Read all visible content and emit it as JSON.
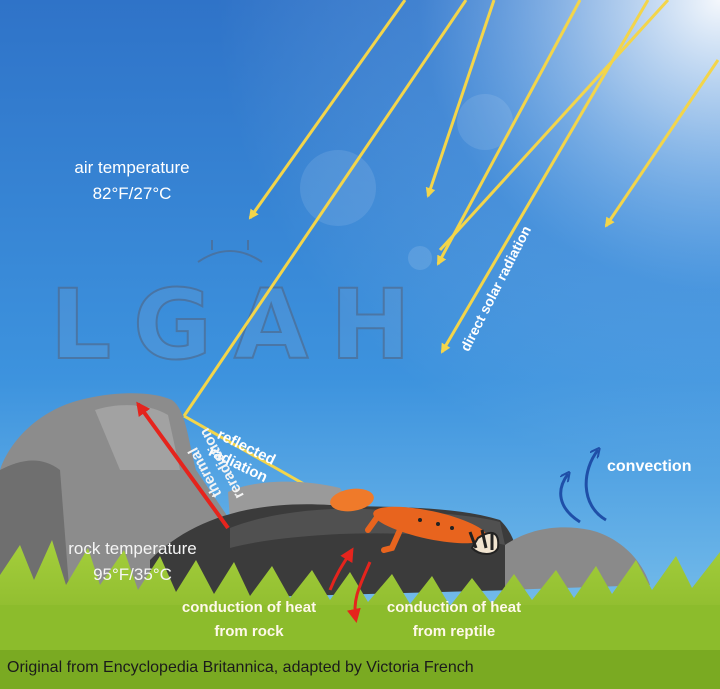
{
  "labels": {
    "air_temperature": "air temperature",
    "air_temperature_value": "82°F/27°C",
    "direct_solar_radiation": "direct solar radiation",
    "reflected_1": "reflected",
    "reflected_2": "radiation",
    "thermal_1": "thermal",
    "thermal_2": "reradiation",
    "rock_temperature": "rock temperature",
    "rock_temperature_value": "95°F/35°C",
    "convection": "convection",
    "conduction_rock_1": "conduction of heat",
    "conduction_rock_2": "from rock",
    "conduction_reptile_1": "conduction of heat",
    "conduction_reptile_2": "from reptile"
  },
  "watermark": "LGAH",
  "credit": "Original from Encyclopedia Britannica, adapted by Victoria French",
  "colors": {
    "sky_top": "#2f73c8",
    "sky_bottom": "#7ec6ef",
    "sun_ray": "#f3d54a",
    "thermal_arrow": "#e5241d",
    "convection_arrow": "#1f4fa8",
    "grass": "#8cbc2c",
    "rock": "#8a8a8a",
    "reptile": "#e8641e"
  }
}
